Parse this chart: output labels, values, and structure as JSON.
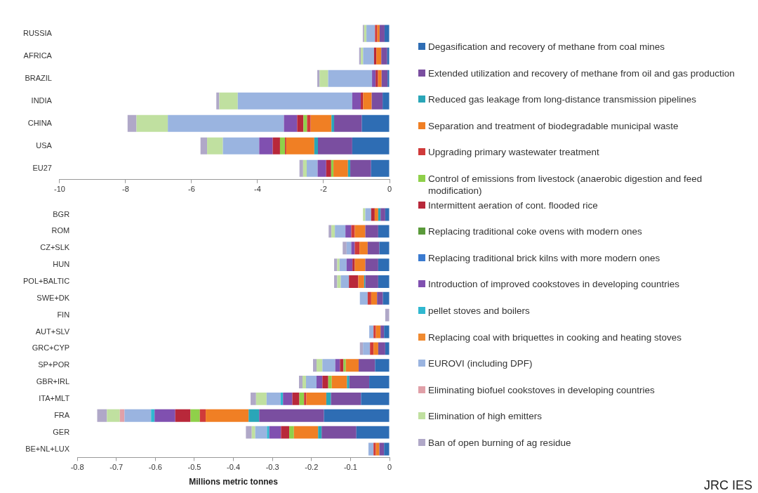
{
  "chart_data": [
    {
      "type": "bar",
      "orientation": "horizontal",
      "stacked": true,
      "legend": "right",
      "categories": [
        "RUSSIA",
        "AFRICA",
        "BRAZIL",
        "INDIA",
        "CHINA",
        "USA",
        "EU27"
      ],
      "xlim": [
        -10,
        0
      ],
      "xticks": [
        -10,
        -8,
        -6,
        -4,
        -2,
        0
      ],
      "series": [
        {
          "name": "Degasification and recovery of methane from coal mines",
          "color": "#2e6db4",
          "values": [
            -0.15,
            -0.07,
            -0.06,
            -0.21,
            -0.84,
            -1.13,
            -0.56
          ]
        },
        {
          "name": "Extended utilization and recovery of methane from oil and gas production",
          "color": "#7a4ea0",
          "values": [
            -0.15,
            -0.18,
            -0.18,
            -0.33,
            -0.84,
            -1.04,
            -0.63
          ]
        },
        {
          "name": "Reduced gas leakage from long-distance transmission pipelines",
          "color": "#2aa6b8",
          "values": [
            0,
            0,
            0,
            0,
            -0.08,
            -0.11,
            -0.07
          ]
        },
        {
          "name": "Separation and treatment of biodegradable municipal waste",
          "color": "#f07f24",
          "values": [
            -0.07,
            -0.15,
            -0.11,
            -0.26,
            -0.63,
            -0.85,
            -0.44
          ]
        },
        {
          "name": "Upgrading primary  wastewater treatment",
          "color": "#d03a3a",
          "values": [
            -0.07,
            0,
            0,
            0,
            -0.11,
            -0.04,
            0
          ]
        },
        {
          "name": "Control of emissions from livestock (anaerobic digestion and feed modification)",
          "color": "#8fd04a",
          "values": [
            0,
            0,
            0,
            0,
            -0.11,
            -0.15,
            -0.07
          ]
        },
        {
          "name": "Intermittent aeration of cont. flooded rice",
          "color": "#b8283a",
          "values": [
            0,
            -0.07,
            -0.07,
            -0.07,
            -0.19,
            -0.22,
            -0.15
          ]
        },
        {
          "name": "Replacing traditional coke ovens with modern ones",
          "color": "#5a9a3a",
          "values": [
            0,
            0,
            0,
            0,
            0,
            0,
            0
          ]
        },
        {
          "name": "Replacing traditional brick kilns with more modern ones",
          "color": "#3a7ad0",
          "values": [
            0,
            0,
            0,
            0,
            0,
            0,
            0
          ]
        },
        {
          "name": "Introduction of improved cookstoves in developing countries",
          "color": "#8050b0",
          "values": [
            0,
            0,
            -0.11,
            -0.26,
            -0.4,
            -0.41,
            -0.26
          ]
        },
        {
          "name": "pellet stoves and boilers",
          "color": "#30b8d0",
          "values": [
            0,
            0,
            0,
            0,
            0,
            0,
            0
          ]
        },
        {
          "name": "Replacing coal with briquettes in cooking and heating stoves",
          "color": "#f08a30",
          "values": [
            0,
            0,
            0,
            0,
            0,
            0,
            0
          ]
        },
        {
          "name": "EUROVI (including DPF)",
          "color": "#9ab4e0",
          "values": [
            -0.26,
            -0.33,
            -1.33,
            -3.47,
            -3.52,
            -1.1,
            -0.33
          ]
        },
        {
          "name": "Eliminating biofuel cookstoves in developing countries",
          "color": "#e0a0a8",
          "values": [
            0,
            0,
            0,
            0,
            0,
            0,
            0
          ]
        },
        {
          "name": "Elimination of high emitters",
          "color": "#c0e0a0",
          "values": [
            -0.07,
            -0.07,
            -0.26,
            -0.56,
            -0.95,
            -0.48,
            -0.11
          ]
        },
        {
          "name": "Ban of open burning of ag residue",
          "color": "#b0a8c8",
          "values": [
            -0.04,
            -0.05,
            -0.07,
            -0.09,
            -0.27,
            -0.2,
            -0.11
          ]
        }
      ]
    },
    {
      "type": "bar",
      "orientation": "horizontal",
      "stacked": true,
      "xlabel": "Millions metric tonnes",
      "annotations": [
        "JRC IES"
      ],
      "categories": [
        "BGR",
        "ROM",
        "CZ+SLK",
        "HUN",
        "POL+BALTIC",
        "SWE+DK",
        "FIN",
        "AUT+SLV",
        "GRC+CYP",
        "SP+POR",
        "GBR+IRL",
        "ITA+MLT",
        "FRA",
        "GER",
        "BE+NL+LUX"
      ],
      "xlim": [
        -0.8,
        0
      ],
      "xticks": [
        -0.8,
        -0.7,
        -0.6,
        -0.5,
        -0.4,
        -0.3,
        -0.2,
        -0.1,
        0
      ],
      "series": [
        {
          "color": "#2e6db4",
          "values": [
            -0.011,
            -0.029,
            -0.026,
            -0.029,
            -0.029,
            -0.017,
            0,
            -0.014,
            -0.011,
            -0.037,
            -0.052,
            -0.073,
            -0.168,
            -0.085,
            -0.014
          ]
        },
        {
          "color": "#7a4ea0",
          "values": [
            -0.012,
            -0.033,
            -0.03,
            -0.033,
            -0.033,
            -0.015,
            0,
            -0.009,
            -0.018,
            -0.042,
            -0.051,
            -0.077,
            -0.166,
            -0.089,
            -0.012
          ]
        },
        {
          "color": "#2aa6b8",
          "values": [
            -0.006,
            0,
            0,
            0,
            -0.003,
            0,
            0,
            0,
            0,
            0,
            -0.006,
            -0.012,
            -0.027,
            -0.009,
            0
          ]
        },
        {
          "color": "#f07f24",
          "values": [
            -0.009,
            -0.027,
            -0.021,
            -0.027,
            -0.015,
            -0.015,
            0,
            -0.012,
            -0.012,
            -0.033,
            -0.039,
            -0.051,
            -0.11,
            -0.062,
            -0.009
          ]
        },
        {
          "color": "#d03a3a",
          "values": [
            0,
            -0.009,
            -0.012,
            0,
            0,
            -0.009,
            0,
            -0.006,
            -0.009,
            0,
            0,
            -0.006,
            -0.015,
            0,
            -0.006
          ]
        },
        {
          "color": "#8fd04a",
          "values": [
            0,
            0,
            0,
            0,
            0,
            0,
            0,
            0,
            0,
            -0.006,
            -0.009,
            -0.012,
            -0.024,
            -0.012,
            0
          ]
        },
        {
          "color": "#b8283a",
          "values": [
            -0.009,
            0,
            0,
            -0.006,
            -0.024,
            0,
            0,
            0,
            0,
            -0.009,
            -0.015,
            -0.018,
            -0.039,
            -0.021,
            0
          ]
        },
        {
          "color": "#5a9a3a",
          "values": [
            0,
            0,
            0,
            0,
            0,
            0,
            0,
            0,
            0,
            0,
            0,
            0,
            0,
            0,
            0
          ]
        },
        {
          "color": "#3a7ad0",
          "values": [
            0,
            0,
            0,
            0,
            0,
            0,
            0,
            0,
            0,
            0,
            0,
            0,
            0,
            0,
            0
          ]
        },
        {
          "color": "#8050b0",
          "values": [
            0,
            -0.015,
            -0.009,
            -0.015,
            0,
            0,
            0,
            0,
            0,
            -0.012,
            -0.015,
            -0.024,
            -0.053,
            -0.03,
            0
          ]
        },
        {
          "color": "#30b8d0",
          "values": [
            0,
            0,
            0,
            0,
            0,
            0,
            0,
            0,
            0,
            0,
            0,
            -0.006,
            -0.009,
            -0.006,
            0
          ]
        },
        {
          "color": "#f08a30",
          "values": [
            0,
            0,
            0,
            0,
            0,
            0,
            0,
            0,
            0,
            0,
            0,
            0,
            0,
            0,
            0
          ]
        },
        {
          "color": "#9ab4e0",
          "values": [
            -0.015,
            -0.027,
            -0.012,
            -0.018,
            -0.021,
            -0.02,
            0,
            -0.011,
            -0.018,
            -0.033,
            -0.027,
            -0.036,
            -0.068,
            -0.03,
            -0.013
          ]
        },
        {
          "color": "#e0a0a8",
          "values": [
            0,
            0,
            0,
            0,
            0,
            0,
            0,
            0,
            0,
            0,
            0,
            0,
            -0.012,
            0,
            0
          ]
        },
        {
          "color": "#c0e0a0",
          "values": [
            -0.006,
            -0.009,
            0,
            -0.006,
            -0.009,
            0,
            0,
            0,
            0,
            -0.015,
            -0.009,
            -0.027,
            -0.033,
            -0.009,
            0
          ]
        },
        {
          "color": "#b0a8c8",
          "values": [
            0,
            -0.007,
            -0.01,
            -0.008,
            -0.008,
            0,
            -0.011,
            0,
            -0.008,
            -0.009,
            -0.009,
            -0.014,
            -0.025,
            -0.015,
            0
          ]
        }
      ]
    }
  ]
}
